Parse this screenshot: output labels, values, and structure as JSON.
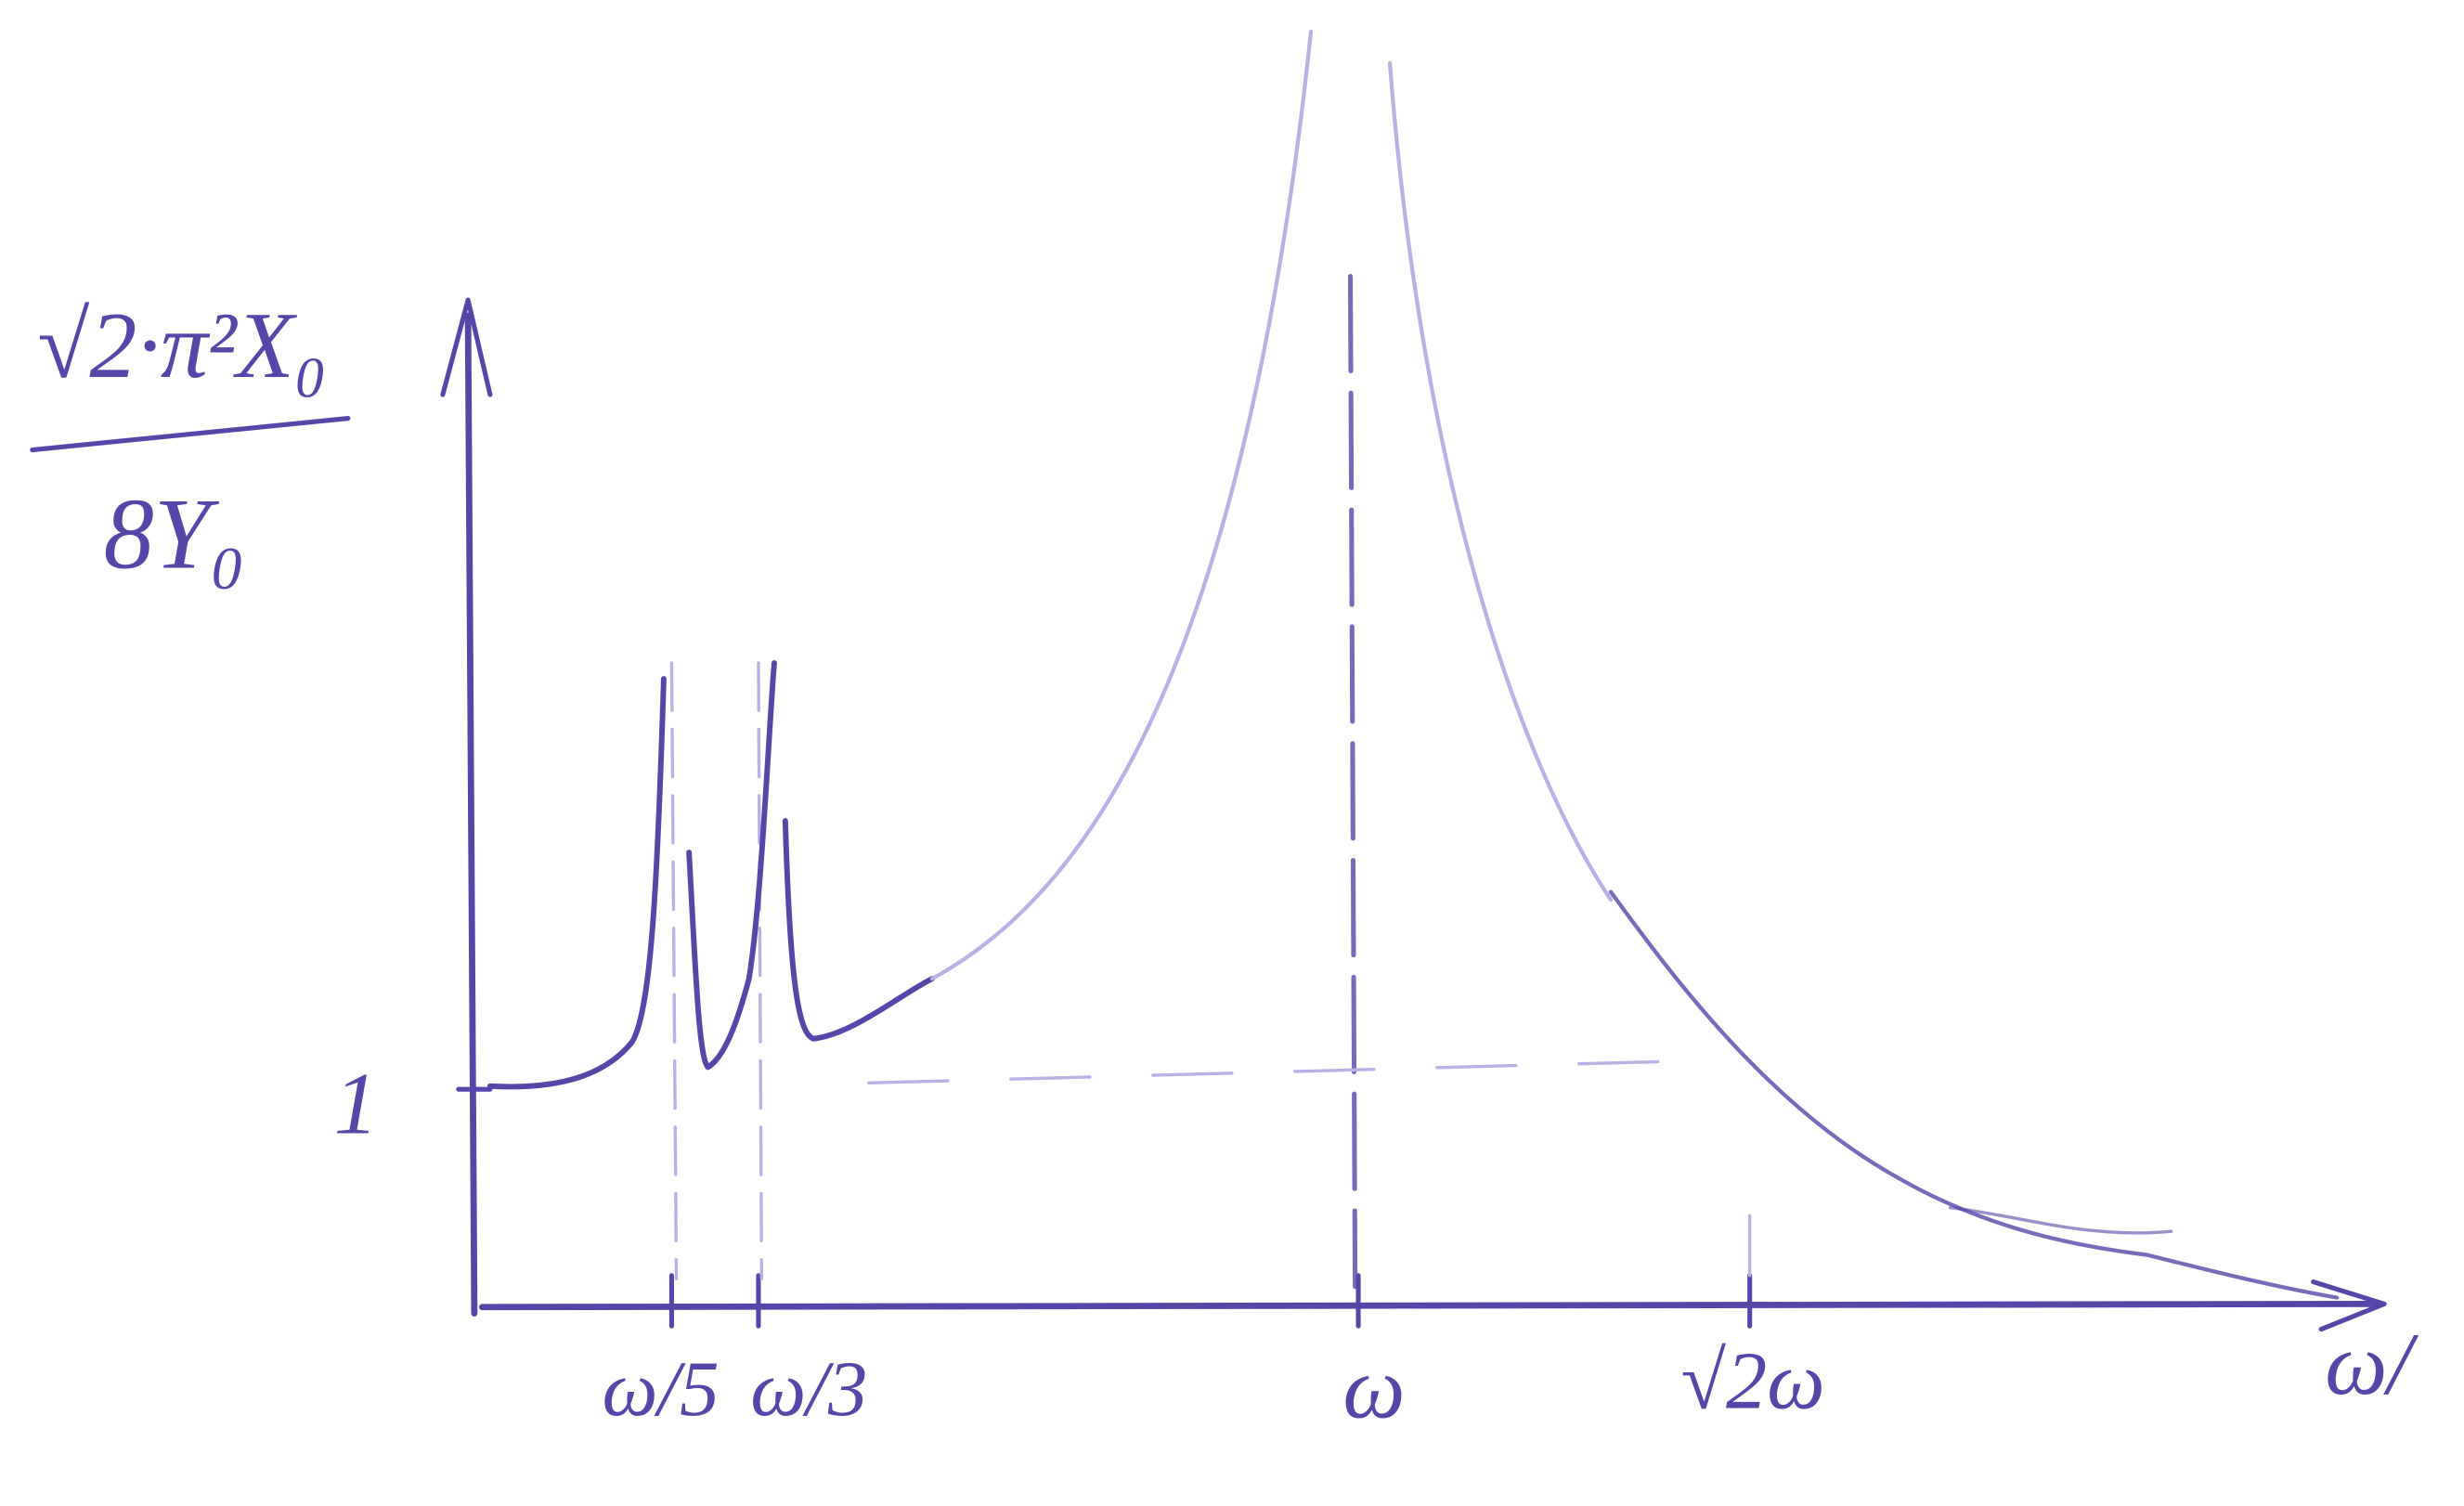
{
  "y_axis_label": {
    "numerator": "√2·π²X₀",
    "denominator": "8Y₀"
  },
  "y_tick": "1",
  "x_ticks": [
    "ω/5",
    "ω/3",
    "ω",
    "√2ω"
  ],
  "x_axis_label": "ω/"
}
